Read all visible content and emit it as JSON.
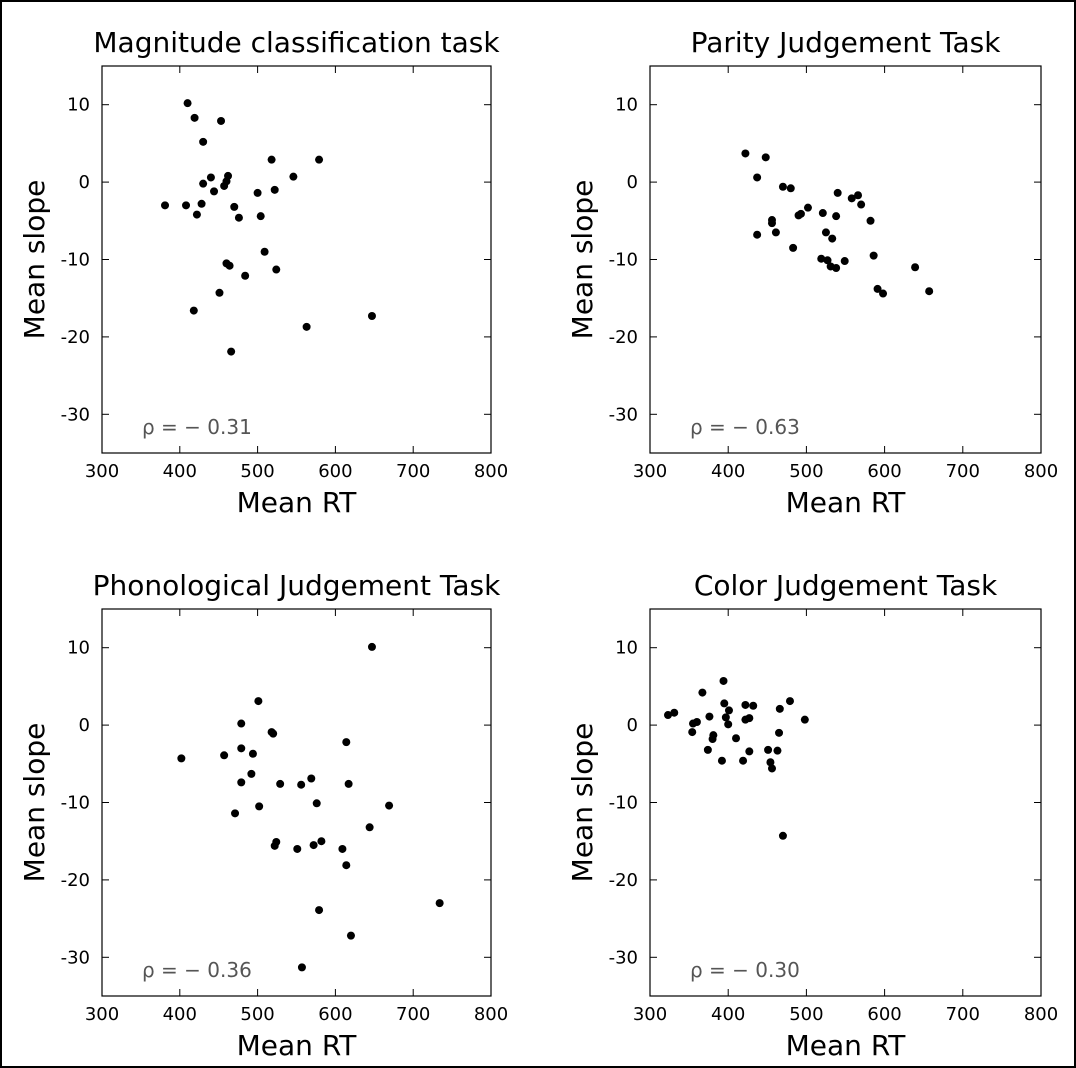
{
  "figure": {
    "background": "#ffffff",
    "point_color": "#000000",
    "annotation_color": "#555555"
  },
  "chart_data": [
    {
      "type": "scatter",
      "title": "Magnitude classification task",
      "xlabel": "Mean RT",
      "ylabel": "Mean slope",
      "xlim": [
        300,
        800
      ],
      "ylim": [
        -35,
        15
      ],
      "xticks": [
        300,
        400,
        500,
        600,
        700,
        800
      ],
      "yticks": [
        10,
        0,
        -10,
        -20,
        -30
      ],
      "annotation": "ρ = − 0.31",
      "grid": false,
      "points": [
        [
          410,
          10.2
        ],
        [
          419,
          8.3
        ],
        [
          453,
          7.9
        ],
        [
          430,
          5.2
        ],
        [
          579,
          2.9
        ],
        [
          518,
          2.9
        ],
        [
          546,
          0.7
        ],
        [
          462,
          0.8
        ],
        [
          440,
          0.6
        ],
        [
          460,
          0.1
        ],
        [
          430,
          -0.2
        ],
        [
          457,
          -0.5
        ],
        [
          522,
          -1.0
        ],
        [
          444,
          -1.2
        ],
        [
          500,
          -1.4
        ],
        [
          381,
          -3.0
        ],
        [
          408,
          -3.0
        ],
        [
          428,
          -2.8
        ],
        [
          470,
          -3.2
        ],
        [
          422,
          -4.2
        ],
        [
          476,
          -4.6
        ],
        [
          504,
          -4.4
        ],
        [
          509,
          -9.0
        ],
        [
          460,
          -10.5
        ],
        [
          464,
          -10.8
        ],
        [
          524,
          -11.3
        ],
        [
          484,
          -12.1
        ],
        [
          451,
          -14.3
        ],
        [
          418,
          -16.6
        ],
        [
          563,
          -18.7
        ],
        [
          647,
          -17.3
        ],
        [
          466,
          -21.9
        ]
      ]
    },
    {
      "type": "scatter",
      "title": "Parity Judgement Task",
      "xlabel": "Mean RT",
      "ylabel": "Mean slope",
      "xlim": [
        300,
        800
      ],
      "ylim": [
        -35,
        15
      ],
      "xticks": [
        300,
        400,
        500,
        600,
        700,
        800
      ],
      "yticks": [
        10,
        0,
        -10,
        -20,
        -30
      ],
      "annotation": "ρ = − 0.63",
      "grid": false,
      "points": [
        [
          422,
          3.7
        ],
        [
          448,
          3.2
        ],
        [
          437,
          0.6
        ],
        [
          470,
          -0.6
        ],
        [
          480,
          -0.8
        ],
        [
          540,
          -1.4
        ],
        [
          566,
          -1.7
        ],
        [
          558,
          -2.1
        ],
        [
          570,
          -2.9
        ],
        [
          502,
          -3.3
        ],
        [
          493,
          -4.1
        ],
        [
          490,
          -4.3
        ],
        [
          521,
          -4.0
        ],
        [
          538,
          -4.4
        ],
        [
          582,
          -5.0
        ],
        [
          456,
          -4.9
        ],
        [
          456,
          -5.3
        ],
        [
          461,
          -6.5
        ],
        [
          437,
          -6.8
        ],
        [
          525,
          -6.5
        ],
        [
          533,
          -7.3
        ],
        [
          483,
          -8.5
        ],
        [
          586,
          -9.5
        ],
        [
          519,
          -9.9
        ],
        [
          527,
          -10.1
        ],
        [
          549,
          -10.2
        ],
        [
          531,
          -10.9
        ],
        [
          538,
          -11.1
        ],
        [
          639,
          -11.0
        ],
        [
          591,
          -13.8
        ],
        [
          598,
          -14.4
        ],
        [
          657,
          -14.1
        ]
      ]
    },
    {
      "type": "scatter",
      "title": "Phonological Judgement Task",
      "xlabel": "Mean RT",
      "ylabel": "Mean slope",
      "xlim": [
        300,
        800
      ],
      "ylim": [
        -35,
        15
      ],
      "xticks": [
        300,
        400,
        500,
        600,
        700,
        800
      ],
      "yticks": [
        10,
        0,
        -10,
        -20,
        -30
      ],
      "annotation": "ρ = − 0.36",
      "grid": false,
      "points": [
        [
          647,
          10.1
        ],
        [
          501,
          3.1
        ],
        [
          518,
          -0.9
        ],
        [
          520,
          -1.1
        ],
        [
          479,
          0.2
        ],
        [
          614,
          -2.2
        ],
        [
          479,
          -3.0
        ],
        [
          494,
          -3.7
        ],
        [
          457,
          -3.9
        ],
        [
          402,
          -4.3
        ],
        [
          492,
          -6.3
        ],
        [
          569,
          -6.9
        ],
        [
          529,
          -7.6
        ],
        [
          556,
          -7.7
        ],
        [
          617,
          -7.6
        ],
        [
          479,
          -7.4
        ],
        [
          576,
          -10.1
        ],
        [
          669,
          -10.4
        ],
        [
          502,
          -10.5
        ],
        [
          471,
          -11.4
        ],
        [
          644,
          -13.2
        ],
        [
          582,
          -15.0
        ],
        [
          524,
          -15.1
        ],
        [
          522,
          -15.6
        ],
        [
          572,
          -15.5
        ],
        [
          551,
          -16.0
        ],
        [
          609,
          -16.0
        ],
        [
          614,
          -18.1
        ],
        [
          734,
          -23.0
        ],
        [
          579,
          -23.9
        ],
        [
          620,
          -27.2
        ],
        [
          557,
          -31.3
        ]
      ]
    },
    {
      "type": "scatter",
      "title": "Color Judgement Task",
      "xlabel": "Mean RT",
      "ylabel": "Mean slope",
      "xlim": [
        300,
        800
      ],
      "ylim": [
        -35,
        15
      ],
      "xticks": [
        300,
        400,
        500,
        600,
        700,
        800
      ],
      "yticks": [
        10,
        0,
        -10,
        -20,
        -30
      ],
      "annotation": "ρ = − 0.30",
      "grid": false,
      "points": [
        [
          394,
          5.7
        ],
        [
          367,
          4.2
        ],
        [
          479,
          3.1
        ],
        [
          395,
          2.8
        ],
        [
          422,
          2.6
        ],
        [
          432,
          2.5
        ],
        [
          466,
          2.1
        ],
        [
          401,
          1.9
        ],
        [
          331,
          1.6
        ],
        [
          323,
          1.3
        ],
        [
          376,
          1.1
        ],
        [
          397,
          1.0
        ],
        [
          427,
          0.9
        ],
        [
          422,
          0.7
        ],
        [
          498,
          0.7
        ],
        [
          360,
          0.4
        ],
        [
          355,
          0.2
        ],
        [
          400,
          0.1
        ],
        [
          354,
          -0.9
        ],
        [
          465,
          -1.0
        ],
        [
          381,
          -1.3
        ],
        [
          380,
          -1.8
        ],
        [
          410,
          -1.7
        ],
        [
          374,
          -3.2
        ],
        [
          427,
          -3.4
        ],
        [
          451,
          -3.2
        ],
        [
          463,
          -3.3
        ],
        [
          392,
          -4.6
        ],
        [
          419,
          -4.6
        ],
        [
          454,
          -4.8
        ],
        [
          456,
          -5.6
        ],
        [
          470,
          -14.3
        ]
      ]
    }
  ]
}
